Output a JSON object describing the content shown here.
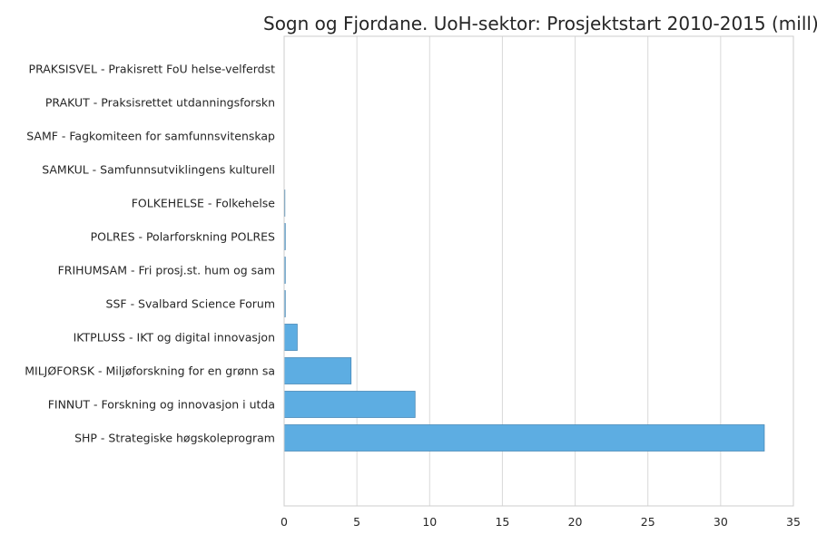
{
  "chart_data": {
    "type": "bar",
    "orientation": "horizontal",
    "title": "Sogn og Fjordane. UoH-sektor: Prosjektstart 2010-2015 (mill)",
    "xlabel": "",
    "ylabel": "",
    "xlim": [
      0,
      35
    ],
    "xticks": [
      0,
      5,
      10,
      15,
      20,
      25,
      30,
      35
    ],
    "grid": true,
    "bar_color": "#5dade2",
    "bar_edge_color": "#4a8ab8",
    "categories": [
      "PRAKSISVEL - Prakisrett FoU helse-velferdst",
      "PRAKUT - Praksisrettet utdanningsforskn",
      "SAMF - Fagkomiteen for samfunnsvitenskap",
      "SAMKUL - Samfunnsutviklingens kulturell",
      "FOLKEHELSE - Folkehelse",
      "POLRES - Polarforskning POLRES",
      "FRIHUMSAM - Fri prosj.st. hum og sam",
      "SSF - Svalbard Science Forum",
      "IKTPLUSS - IKT og digital innovasjon",
      "MILJØFORSK - Miljøforskning for en grønn sa",
      "FINNUT - Forskning og innovasjon i utda",
      "SHP - Strategiske høgskoleprogram"
    ],
    "values": [
      0,
      0,
      0,
      0,
      0.02,
      0.08,
      0.08,
      0.08,
      0.9,
      4.6,
      9.0,
      33.0
    ]
  }
}
